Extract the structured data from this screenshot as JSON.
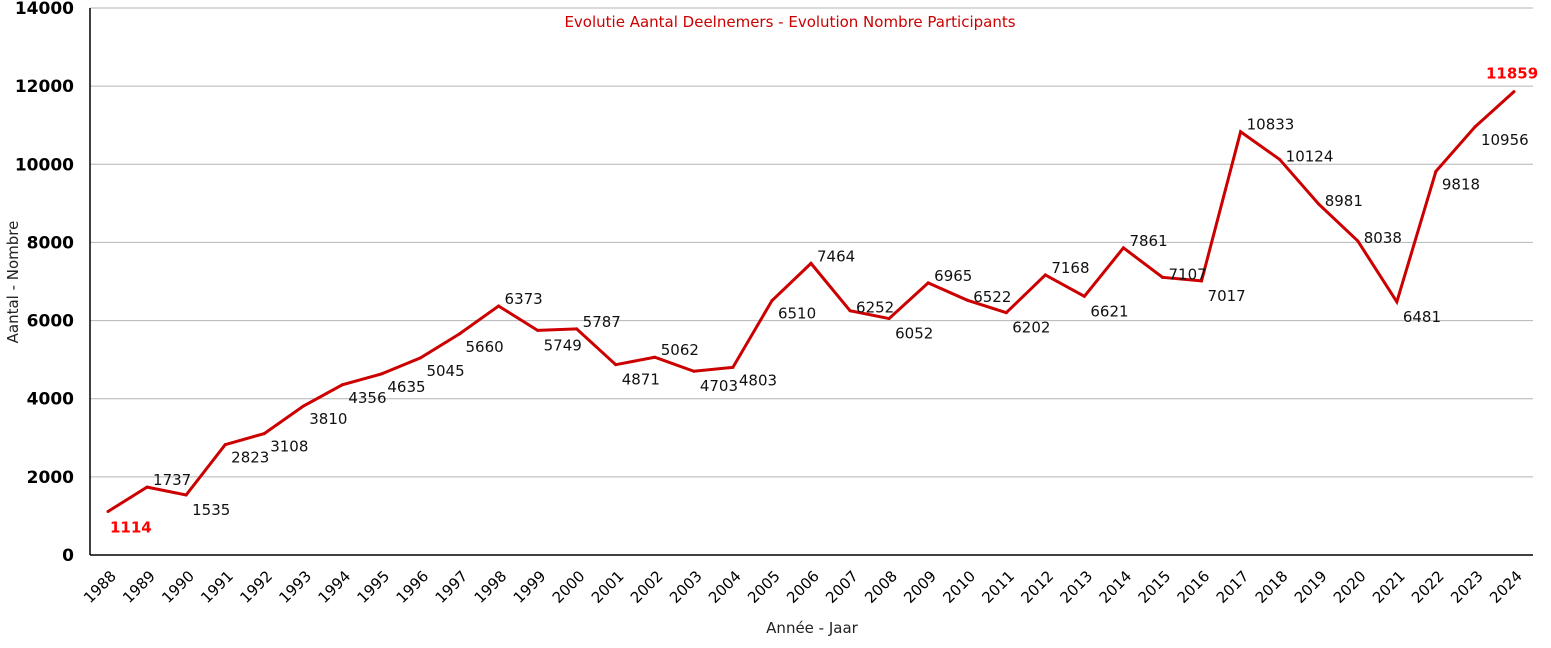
{
  "chart_data": {
    "type": "line",
    "title": "Evolutie Aantal Deelnemers - Evolution Nombre Participants",
    "xlabel": "Année - Jaar",
    "ylabel": "Aantal - Nombre",
    "ylim": [
      0,
      14000
    ],
    "yticks": [
      0,
      2000,
      4000,
      6000,
      8000,
      10000,
      12000,
      14000
    ],
    "grid": true,
    "legend": "none",
    "series_color": "#cc0000",
    "highlight_color": "#ff0000",
    "categories": [
      "1988",
      "1989",
      "1990",
      "1991",
      "1992",
      "1993",
      "1994",
      "1995",
      "1996",
      "1997",
      "1998",
      "1999",
      "2000",
      "2001",
      "2002",
      "2003",
      "2004",
      "2005",
      "2006",
      "2007",
      "2008",
      "2009",
      "2010",
      "2011",
      "2012",
      "2013",
      "2014",
      "2015",
      "2016",
      "2017",
      "2018",
      "2019",
      "2020",
      "2021",
      "2022",
      "2023",
      "2024"
    ],
    "series": [
      {
        "name": "Deelnemers",
        "values": [
          1114,
          1737,
          1535,
          2823,
          3108,
          3810,
          4356,
          4635,
          5045,
          5660,
          6373,
          5749,
          5787,
          4871,
          5062,
          4703,
          4803,
          6510,
          7464,
          6252,
          6052,
          6965,
          6522,
          6202,
          7168,
          6621,
          7861,
          7107,
          7017,
          10833,
          10124,
          8981,
          8038,
          6481,
          9818,
          10956,
          11859
        ]
      }
    ],
    "highlighted_labels": [
      "1988",
      "2024"
    ]
  }
}
